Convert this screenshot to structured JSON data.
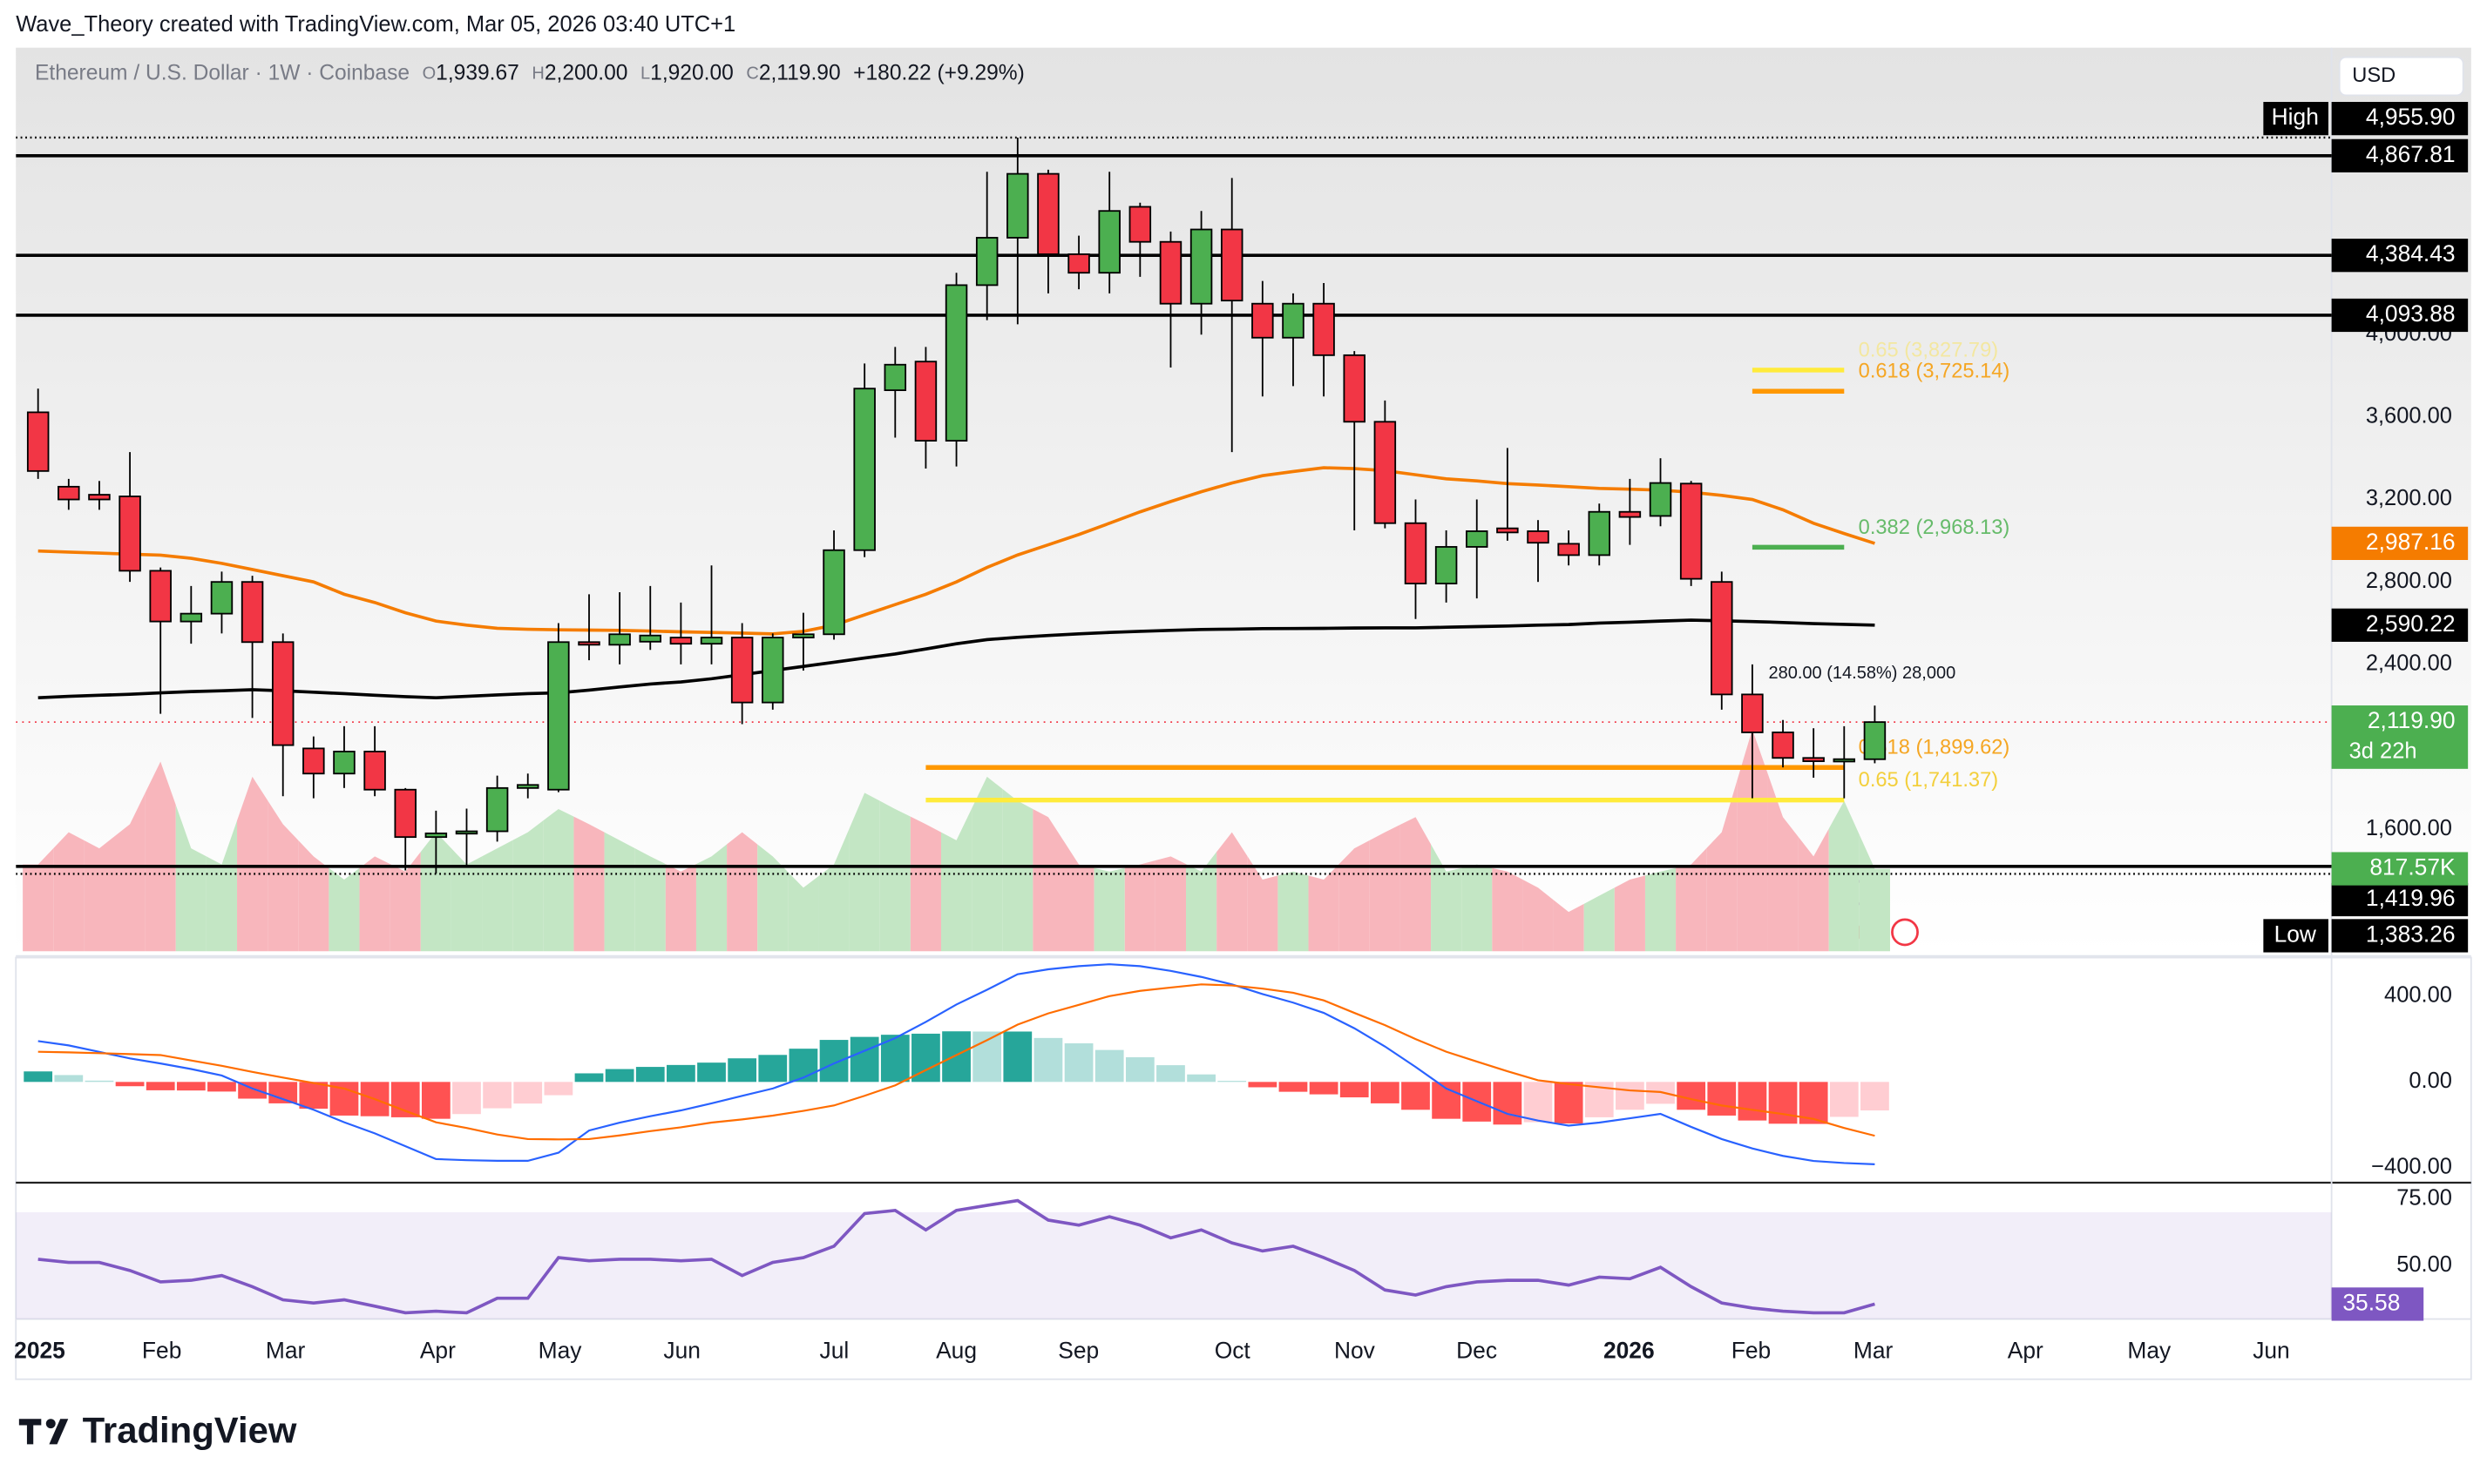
{
  "header": {
    "credit": "Wave_Theory created with TradingView.com, Mar 05, 2026 03:40 UTC+1",
    "currency": "USD"
  },
  "footer": {
    "brand": "TradingView"
  },
  "time_labels": [
    "2025",
    "Feb",
    "Mar",
    "Apr",
    "May",
    "Jun",
    "Jul",
    "Aug",
    "Sep",
    "Oct",
    "Nov",
    "Dec",
    "2026",
    "Feb",
    "Mar",
    "Apr",
    "May",
    "Jun"
  ],
  "chart_data": [
    {
      "type": "candlestick",
      "title": "Ethereum / U.S. Dollar · 1W · Coinbase",
      "legend": {
        "fields": [
          {
            "key": "O",
            "value": "1,939.67"
          },
          {
            "key": "H",
            "value": "2,200.00"
          },
          {
            "key": "L",
            "value": "1,920.00"
          },
          {
            "key": "C",
            "value": "2,119.90"
          }
        ],
        "change": "+180.22 (+9.29%)"
      },
      "up_color": "#4caf50",
      "down_color": "#f23645",
      "grid": false,
      "ylim": [
        1008,
        5392
      ],
      "yticks": [
        {
          "value": 1600,
          "label": "1,600.00"
        },
        {
          "value": 2400,
          "label": "2,400.00"
        },
        {
          "value": 2800,
          "label": "2,800.00"
        },
        {
          "value": 3200,
          "label": "3,200.00"
        },
        {
          "value": 3600,
          "label": "3,600.00"
        },
        {
          "value": 4000,
          "label": "4,000.00"
        }
      ],
      "open": [
        3623,
        3262,
        3223,
        3215,
        2854,
        2608,
        2646,
        2800,
        2508,
        1992,
        1870,
        1977,
        1792,
        1562,
        1580,
        1590,
        1800,
        1792,
        2508,
        2495,
        2510,
        2530,
        2500,
        2530,
        2215,
        2530,
        2546,
        2954,
        3730,
        3869,
        3485,
        4240,
        4470,
        4780,
        4390,
        4300,
        4620,
        4450,
        4150,
        4510,
        4150,
        3985,
        4150,
        3900,
        3577,
        3085,
        2792,
        2970,
        3060,
        3046,
        2985,
        2930,
        3140,
        3120,
        3277,
        2800,
        2254,
        2070,
        1946,
        1935,
        1939.67
      ],
      "high": [
        3738,
        3300,
        3290,
        3430,
        2870,
        2780,
        2850,
        2830,
        2550,
        2050,
        2100,
        2100,
        1800,
        1690,
        1700,
        1860,
        1870,
        2600,
        2740,
        2750,
        2780,
        2700,
        2880,
        2600,
        2550,
        2650,
        3050,
        3860,
        3940,
        3940,
        4300,
        4790,
        4955.9,
        4800,
        4480,
        4790,
        4640,
        4500,
        4600,
        4760,
        4260,
        4200,
        4250,
        3920,
        3680,
        3200,
        3050,
        3200,
        3450,
        3100,
        3050,
        3180,
        3300,
        3400,
        3290,
        2850,
        2400,
        2130,
        2090,
        2100,
        2200
      ],
      "low": [
        3300,
        3150,
        3150,
        2800,
        2160,
        2500,
        2550,
        2140,
        1760,
        1750,
        1800,
        1760,
        1400,
        1385,
        1420,
        1540,
        1750,
        1780,
        2420,
        2400,
        2470,
        2400,
        2400,
        2110,
        2180,
        2370,
        2520,
        2920,
        3500,
        3350,
        3360,
        4070,
        4050,
        4200,
        4220,
        4200,
        4280,
        3840,
        4000,
        3430,
        3700,
        3750,
        3700,
        3050,
        3060,
        2620,
        2700,
        2720,
        3000,
        2800,
        2880,
        2880,
        2980,
        3070,
        2780,
        2180,
        1750,
        1900,
        1850,
        1750,
        1920
      ],
      "close": [
        3338,
        3200,
        3200,
        2854,
        2608,
        2646,
        2800,
        2508,
        2008,
        1870,
        1977,
        1792,
        1562,
        1580,
        1590,
        1800,
        1815,
        2508,
        2495,
        2546,
        2540,
        2500,
        2530,
        2215,
        2530,
        2546,
        2954,
        3738,
        3854,
        3485,
        4240,
        4470,
        4780,
        4390,
        4300,
        4600,
        4450,
        4150,
        4510,
        4165,
        3985,
        4150,
        3900,
        3577,
        3085,
        2792,
        2970,
        3046,
        3040,
        2990,
        2930,
        3140,
        3115,
        3280,
        2815,
        2254,
        2070,
        1946,
        1930,
        1940,
        2119.9
      ],
      "series": [
        {
          "color": "#f57c00",
          "values": [
            2950,
            2945,
            2940,
            2935,
            2930,
            2915,
            2890,
            2860,
            2830,
            2800,
            2740,
            2700,
            2650,
            2610,
            2590,
            2575,
            2570,
            2568,
            2566,
            2565,
            2562,
            2558,
            2555,
            2552,
            2548,
            2560,
            2590,
            2640,
            2690,
            2740,
            2800,
            2870,
            2931,
            2980,
            3030,
            3085,
            3140,
            3190,
            3238,
            3280,
            3315,
            3335,
            3354,
            3350,
            3340,
            3320,
            3300,
            3290,
            3277,
            3270,
            3262,
            3254,
            3250,
            3245,
            3235,
            3220,
            3200,
            3150,
            3085,
            3035,
            2987.16
          ]
        },
        {
          "color": "#000000",
          "values": [
            2238,
            2245,
            2250,
            2255,
            2262,
            2268,
            2272,
            2277,
            2272,
            2265,
            2258,
            2250,
            2243,
            2238,
            2245,
            2252,
            2258,
            2262,
            2275,
            2290,
            2305,
            2315,
            2330,
            2350,
            2370,
            2390,
            2410,
            2431,
            2450,
            2475,
            2500,
            2520,
            2531,
            2540,
            2548,
            2555,
            2560,
            2565,
            2569,
            2571,
            2573,
            2574,
            2575,
            2576,
            2577,
            2577,
            2580,
            2583,
            2586,
            2590,
            2593,
            2600,
            2605,
            2610,
            2615,
            2612,
            2608,
            2603,
            2598,
            2594,
            2590.22
          ]
        }
      ],
      "volume": {
        "up_color": "#c3e6c4",
        "down_color": "#f8b6bc",
        "values": [
          860000,
          1180000,
          1020000,
          1260000,
          1880000,
          1020000,
          860000,
          1730000,
          1260000,
          940000,
          710000,
          940000,
          790000,
          1180000,
          860000,
          1020000,
          1180000,
          1410000,
          1260000,
          1100000,
          940000,
          790000,
          940000,
          1180000,
          940000,
          630000,
          860000,
          1570000,
          1410000,
          1260000,
          1100000,
          1730000,
          1490000,
          1330000,
          860000,
          790000,
          860000,
          940000,
          790000,
          1180000,
          710000,
          790000,
          710000,
          1020000,
          1180000,
          1330000,
          790000,
          860000,
          790000,
          630000,
          390000,
          550000,
          710000,
          790000,
          860000,
          1180000,
          2200000,
          1330000,
          940000,
          1490000,
          817570
        ],
        "label": {
          "value": 817570,
          "label": "817.57K"
        },
        "label_color": "#4caf50"
      },
      "price_labels": [
        {
          "value": 4955.9,
          "label": "4,955.90",
          "tag": "High",
          "bg": "#000000",
          "line": "dotted"
        },
        {
          "value": 4867.81,
          "label": "4,867.81",
          "bg": "#000000",
          "line": "solid"
        },
        {
          "value": 4384.43,
          "label": "4,384.43",
          "bg": "#000000",
          "line": "solid"
        },
        {
          "value": 4093.88,
          "label": "4,093.88",
          "bg": "#000000",
          "line": "solid"
        },
        {
          "value": 2987.16,
          "label": "2,987.16",
          "bg": "#f57c00"
        },
        {
          "value": 2590.22,
          "label": "2,590.22",
          "bg": "#000000"
        },
        {
          "value": 2119.9,
          "label": "2,119.90",
          "sub": "3d 22h",
          "bg": "#4caf50",
          "line": "current"
        },
        {
          "value": 1419.96,
          "label": "1,419.96",
          "bg": "#000000",
          "line": "solid"
        },
        {
          "value": 1383.26,
          "label": "1,383.26",
          "tag": "Low",
          "bg": "#000000",
          "line": "dotted"
        }
      ],
      "fibs": [
        {
          "value": 3827.79,
          "label": "0.65 (3,827.79)",
          "color": "#ffeb3b",
          "text_color": "#f3e7a0"
        },
        {
          "value": 3725.14,
          "label": "0.618 (3,725.14)",
          "color": "#ff9800",
          "text_color": "#f5a623"
        },
        {
          "value": 2968.13,
          "label": "0.382 (2,968.13)",
          "color": "#4caf50",
          "text_color": "#66bb6a"
        },
        {
          "value": 1899.62,
          "label": "0.618 (1,899.62)",
          "color": "#ff9800",
          "text_color": "#f5a623"
        },
        {
          "value": 1741.37,
          "label": "0.65 (1,741.37)",
          "color": "#ffeb3b",
          "text_color": "#f3cf3c"
        }
      ],
      "annotation": "280.00 (14.58%) 28,000"
    },
    {
      "type": "macd",
      "ylim": [
        -470,
        580
      ],
      "yticks": [
        {
          "value": 400,
          "label": "400.00"
        },
        {
          "value": 0,
          "label": "0.00"
        },
        {
          "value": -400,
          "label": "−400.00"
        }
      ],
      "histogram": {
        "colors": [
          "#26a69a",
          "#b2dfdb",
          "#ff5252",
          "#ffcdd2"
        ],
        "values": [
          49,
          32,
          6,
          -20,
          -39,
          -40,
          -45,
          -78,
          -100,
          -125,
          -157,
          -160,
          -165,
          -172,
          -150,
          -123,
          -101,
          -62,
          40,
          60,
          70,
          79,
          90,
          110,
          126,
          155,
          196,
          210,
          220,
          225,
          236,
          235,
          235,
          205,
          180,
          149,
          115,
          78,
          35,
          5,
          -25,
          -46,
          -58,
          -72,
          -100,
          -130,
          -172,
          -185,
          -199,
          -188,
          -194,
          -165,
          -130,
          -102,
          -130,
          -157,
          -180,
          -195,
          -196,
          -163,
          -133
        ]
      },
      "series": [
        {
          "color": "#2962ff",
          "values": [
            190,
            170,
            140,
            110,
            86,
            60,
            30,
            -31,
            -80,
            -130,
            -188,
            -240,
            -300,
            -360,
            -365,
            -368,
            -368,
            -330,
            -227,
            -190,
            -160,
            -133,
            -100,
            -65,
            -31,
            20,
            86,
            145,
            204,
            280,
            361,
            430,
            502,
            525,
            540,
            549,
            540,
            518,
            490,
            455,
            410,
            370,
            322,
            250,
            165,
            70,
            -31,
            -90,
            -149,
            -180,
            -204,
            -190,
            -170,
            -149,
            -210,
            -267,
            -310,
            -345,
            -369,
            -378,
            -384
          ]
        },
        {
          "color": "#ff6d00",
          "values": [
            141,
            138,
            134,
            130,
            125,
            100,
            75,
            47,
            20,
            -5,
            -31,
            -80,
            -135,
            -188,
            -215,
            -245,
            -267,
            -268,
            -267,
            -250,
            -230,
            -212,
            -190,
            -175,
            -157,
            -135,
            -110,
            -65,
            -16,
            55,
            125,
            195,
            267,
            320,
            360,
            400,
            425,
            440,
            455,
            450,
            435,
            416,
            380,
            322,
            265,
            200,
            141,
            95,
            50,
            8,
            -10,
            -25,
            -40,
            -47,
            -80,
            -110,
            -130,
            -150,
            -173,
            -215,
            -251
          ]
        }
      ]
    },
    {
      "type": "line",
      "color": "#7e57c2",
      "band": [
        30,
        70
      ],
      "ylim": [
        30,
        81.1
      ],
      "yticks": [
        {
          "value": 75,
          "label": "75.00"
        },
        {
          "value": 50,
          "label": "50.00"
        }
      ],
      "values": [
        52.4,
        51.2,
        51.2,
        48.2,
        43.9,
        44.5,
        46.3,
        42.1,
        37.2,
        36.0,
        37.2,
        34.8,
        32.3,
        32.9,
        32.3,
        37.8,
        37.8,
        53.0,
        51.8,
        52.4,
        52.4,
        51.8,
        52.4,
        46.3,
        51.2,
        53.0,
        57.3,
        69.5,
        70.7,
        63.4,
        70.7,
        72.6,
        74.4,
        67.1,
        65.2,
        68.3,
        65.2,
        60.4,
        63.4,
        58.5,
        55.5,
        57.3,
        53.0,
        48.2,
        40.9,
        39.0,
        42.1,
        43.9,
        44.5,
        44.5,
        42.7,
        45.7,
        45.1,
        49.4,
        42.1,
        36.0,
        34.1,
        32.9,
        32.3,
        32.3,
        35.58
      ]
    }
  ]
}
